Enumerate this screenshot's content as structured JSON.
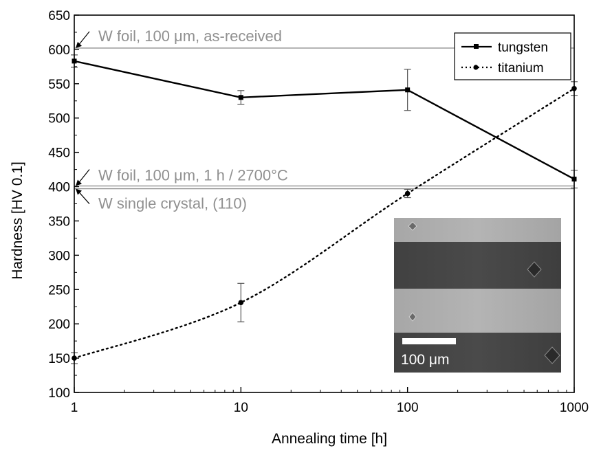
{
  "chart_data": {
    "type": "line",
    "xlabel": "Annealing time [h]",
    "ylabel": "Hardness [HV 0.1]",
    "xscale": "log",
    "xlim": [
      1,
      1000
    ],
    "ylim": [
      100,
      650
    ],
    "xticks": [
      "1",
      "10",
      "100",
      "1000"
    ],
    "yticks": [
      "100",
      "150",
      "200",
      "250",
      "300",
      "350",
      "400",
      "450",
      "500",
      "550",
      "600",
      "650"
    ],
    "legend_position": "top-right",
    "series": [
      {
        "name": "tungsten",
        "style": "solid",
        "marker": "square",
        "color": "#000000",
        "x": [
          1,
          10,
          100,
          1000
        ],
        "y": [
          583,
          530,
          541,
          411
        ],
        "err": [
          9,
          10,
          30,
          13
        ]
      },
      {
        "name": "titanium",
        "style": "dotted",
        "marker": "circle",
        "color": "#000000",
        "x": [
          1,
          10,
          100,
          1000
        ],
        "y": [
          150,
          231,
          390,
          543
        ],
        "err": [
          8,
          28,
          6,
          10
        ]
      }
    ],
    "reference_lines": [
      {
        "y": 602,
        "label": "W foil, 100 μm, as-received",
        "color": "#909090"
      },
      {
        "y": 401,
        "label": "W foil, 100 μm, 1 h / 2700°C",
        "color": "#909090"
      },
      {
        "y": 397,
        "label": "W single crystal, (110)",
        "color": "#909090"
      }
    ],
    "inset": {
      "scale_bar_label": "100 μm"
    }
  }
}
